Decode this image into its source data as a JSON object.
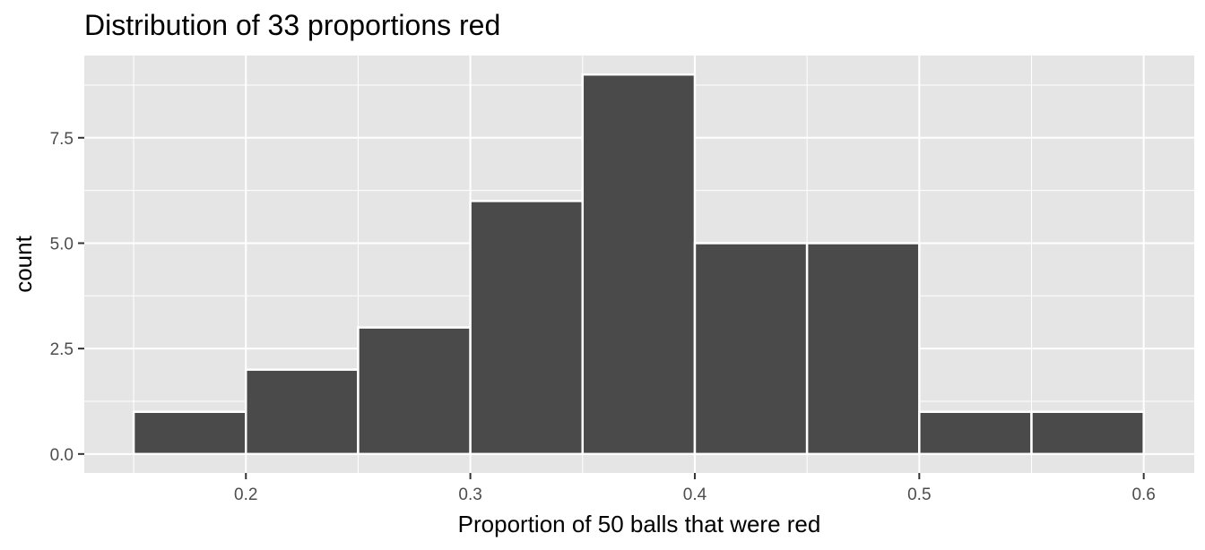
{
  "chart_data": {
    "type": "bar",
    "title": "Distribution of 33 proportions red",
    "xlabel": "Proportion of 50 balls that were red",
    "ylabel": "count",
    "bin_edges": [
      0.15,
      0.2,
      0.25,
      0.3,
      0.35,
      0.4,
      0.45,
      0.5,
      0.55,
      0.6
    ],
    "values": [
      1,
      2,
      3,
      6,
      9,
      5,
      5,
      1,
      1
    ],
    "xlim": [
      0.128,
      0.6225
    ],
    "ylim": [
      -0.45,
      9.45
    ],
    "x_ticks": [
      0.2,
      0.3,
      0.4,
      0.5,
      0.6
    ],
    "x_tick_labels": [
      "0.2",
      "0.3",
      "0.4",
      "0.5",
      "0.6"
    ],
    "y_ticks": [
      0,
      2.5,
      5,
      7.5
    ],
    "y_tick_labels": [
      "0.0",
      "2.5",
      "5.0",
      "7.5"
    ],
    "grid": true,
    "colors": {
      "panel_background": "#e5e5e5",
      "grid": "#ffffff",
      "bar_fill": "#4a4a4a",
      "bar_outline": "#ffffff",
      "tick_label": "#4d4d4d",
      "tick_mark": "#333333"
    }
  }
}
